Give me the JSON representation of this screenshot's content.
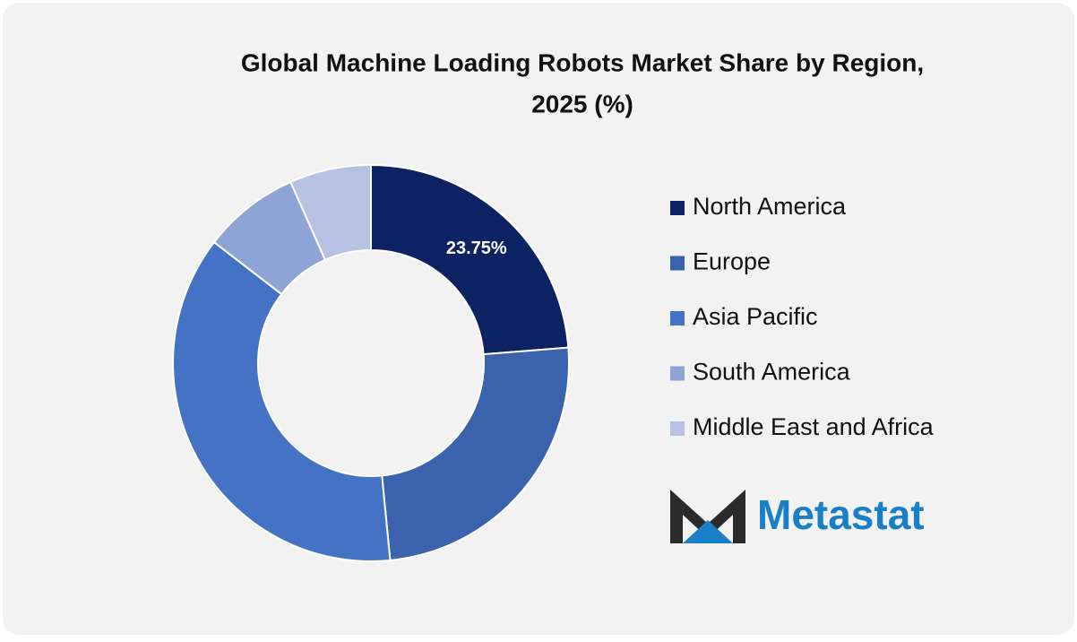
{
  "chart_data": {
    "type": "donut",
    "title": [
      "Global Machine Loading Robots Market Share by Region,",
      "2025 (%)"
    ],
    "categories": [
      "North America",
      "Europe",
      "Asia Pacific",
      "South America",
      "Middle East and Africa"
    ],
    "values": [
      23.75,
      24.7,
      37.0,
      7.9,
      6.65
    ],
    "value_labels": [
      "23.75%",
      null,
      null,
      null,
      null
    ],
    "colors": [
      "#0c2262",
      "#3a62ad",
      "#4472c4",
      "#8ea3d6",
      "#b6c1e4"
    ],
    "legend": "right"
  },
  "logo": {
    "text": "Metastat"
  }
}
